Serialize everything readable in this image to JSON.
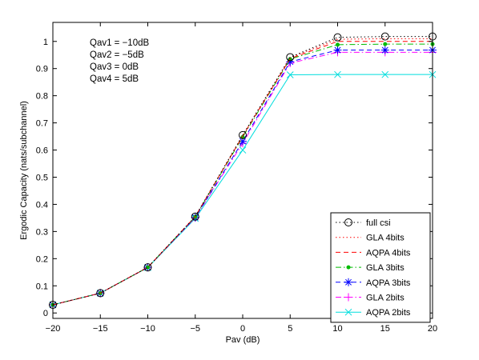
{
  "chart_data": {
    "type": "line",
    "title": "",
    "xlabel": "Pav (dB)",
    "ylabel": "Ergodic Capacity (nats/subchannel)",
    "xlim": [
      -20,
      20
    ],
    "ylim": [
      -0.02,
      1.07
    ],
    "xticks": [
      -20,
      -15,
      -10,
      -5,
      0,
      5,
      10,
      15,
      20
    ],
    "xtick_labels": [
      "−20",
      "−15",
      "−10",
      "−5",
      "0",
      "5",
      "10",
      "15",
      "20"
    ],
    "yticks": [
      0,
      0.1,
      0.2,
      0.3,
      0.4,
      0.5,
      0.6,
      0.7,
      0.8,
      0.9,
      1
    ],
    "ytick_labels": [
      "0",
      "0.1",
      "0.2",
      "0.3",
      "0.4",
      "0.5",
      "0.6",
      "0.7",
      "0.8",
      "0.9",
      "1"
    ],
    "grid": false,
    "legend_position": "bottom-right",
    "annotations": [
      "Qav1 = −10dB",
      "Qav2 = −5dB",
      "Qav3 = 0dB",
      "Qav4 = 5dB"
    ],
    "x": [
      -20,
      -15,
      -10,
      -5,
      0,
      5,
      10,
      15,
      20
    ],
    "series": [
      {
        "name": "full csi",
        "color": "#000000",
        "dash": "dot",
        "marker": "circle",
        "values": [
          0.03,
          0.073,
          0.168,
          0.355,
          0.655,
          0.942,
          1.015,
          1.018,
          1.018
        ]
      },
      {
        "name": "GLA 4bits",
        "color": "#ff0000",
        "dash": "dot",
        "marker": "none",
        "values": [
          0.03,
          0.073,
          0.168,
          0.355,
          0.653,
          0.94,
          1.008,
          1.01,
          1.01
        ]
      },
      {
        "name": "AQPA 4bits",
        "color": "#ff0000",
        "dash": "dash",
        "marker": "none",
        "values": [
          0.03,
          0.073,
          0.168,
          0.355,
          0.652,
          0.937,
          1.0,
          1.0,
          1.0
        ]
      },
      {
        "name": "GLA 3bits",
        "color": "#00bb00",
        "dash": "dashdot",
        "marker": "dot",
        "values": [
          0.03,
          0.073,
          0.168,
          0.354,
          0.648,
          0.935,
          0.988,
          0.99,
          0.99
        ]
      },
      {
        "name": "AQPA 3bits",
        "color": "#0000ff",
        "dash": "dash",
        "marker": "asterisk",
        "values": [
          0.03,
          0.073,
          0.168,
          0.352,
          0.632,
          0.925,
          0.968,
          0.968,
          0.968
        ]
      },
      {
        "name": "GLA 2bits",
        "color": "#ff00ff",
        "dash": "dashdot",
        "marker": "plus",
        "values": [
          0.03,
          0.073,
          0.168,
          0.351,
          0.625,
          0.92,
          0.96,
          0.96,
          0.96
        ]
      },
      {
        "name": "AQPA 2bits",
        "color": "#00dddd",
        "dash": "solid",
        "marker": "x",
        "values": [
          0.03,
          0.073,
          0.167,
          0.348,
          0.6,
          0.877,
          0.878,
          0.878,
          0.878
        ]
      }
    ]
  }
}
